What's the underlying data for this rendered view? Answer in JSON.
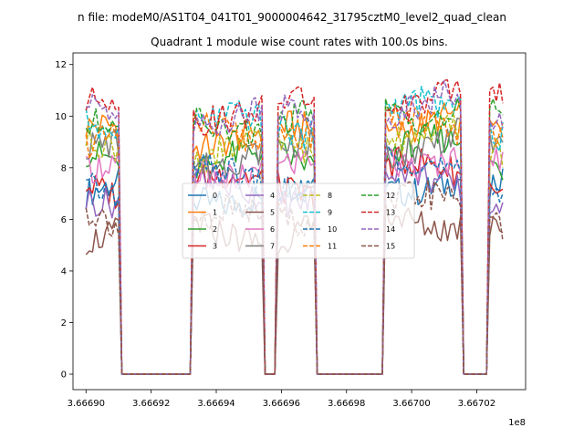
{
  "window": {
    "suptitle": "n file: modeM0/AS1T04_041T01_9000004642_31795cztM0_level2_quad_clean"
  },
  "chart_data": {
    "type": "line",
    "title": "Quadrant 1 module wise count rates with 100.0s bins.",
    "xlabel": "",
    "ylabel": "",
    "x_offset_label": "1e8",
    "xlim": [
      366689600,
      366703500
    ],
    "ylim": [
      -0.6,
      12.45
    ],
    "xticks": [
      366690000,
      366692000,
      366694000,
      366696000,
      366698000,
      366700000,
      366702000
    ],
    "xtick_labels": [
      "3.66690",
      "3.66692",
      "3.66694",
      "3.66696",
      "3.66698",
      "3.66700",
      "3.66702"
    ],
    "yticks": [
      0,
      2,
      4,
      6,
      8,
      10,
      12
    ],
    "ytick_labels": [
      "0",
      "2",
      "4",
      "6",
      "8",
      "10",
      "12"
    ],
    "grid": false,
    "legend_position": "center",
    "legend_columns": 4,
    "x_range": [
      366690000,
      366702800
    ],
    "bin_width": 100,
    "gaps": [
      [
        366691100,
        366693200
      ],
      [
        366695500,
        366695800
      ],
      [
        366697100,
        366699100
      ],
      [
        366701600,
        366702300
      ]
    ],
    "series": [
      {
        "name": "0",
        "color": "#1f77b4",
        "dash": "solid",
        "level": 7.0
      },
      {
        "name": "1",
        "color": "#ff7f0e",
        "dash": "solid",
        "level": 9.2
      },
      {
        "name": "2",
        "color": "#2ca02c",
        "dash": "solid",
        "level": 8.2
      },
      {
        "name": "3",
        "color": "#d62728",
        "dash": "solid",
        "level": 7.3
      },
      {
        "name": "4",
        "color": "#9467bd",
        "dash": "solid",
        "level": 7.1
      },
      {
        "name": "5",
        "color": "#8c564b",
        "dash": "solid",
        "level": 5.6
      },
      {
        "name": "6",
        "color": "#e377c2",
        "dash": "solid",
        "level": 8.0
      },
      {
        "name": "7",
        "color": "#7f7f7f",
        "dash": "solid",
        "level": 8.5
      },
      {
        "name": "8",
        "color": "#bcbd22",
        "dash": "dashed",
        "level": 8.6
      },
      {
        "name": "9",
        "color": "#17becf",
        "dash": "dashed",
        "level": 9.6
      },
      {
        "name": "10",
        "color": "#1f77b4",
        "dash": "dashed",
        "level": 7.5
      },
      {
        "name": "11",
        "color": "#ff7f0e",
        "dash": "dashed",
        "level": 9.4
      },
      {
        "name": "12",
        "color": "#2ca02c",
        "dash": "dashed",
        "level": 9.8
      },
      {
        "name": "13",
        "color": "#d62728",
        "dash": "dashed",
        "level": 10.3
      },
      {
        "name": "14",
        "color": "#9467bd",
        "dash": "dashed",
        "level": 9.9
      },
      {
        "name": "15",
        "color": "#8c564b",
        "dash": "dashed",
        "level": 6.0
      }
    ]
  }
}
